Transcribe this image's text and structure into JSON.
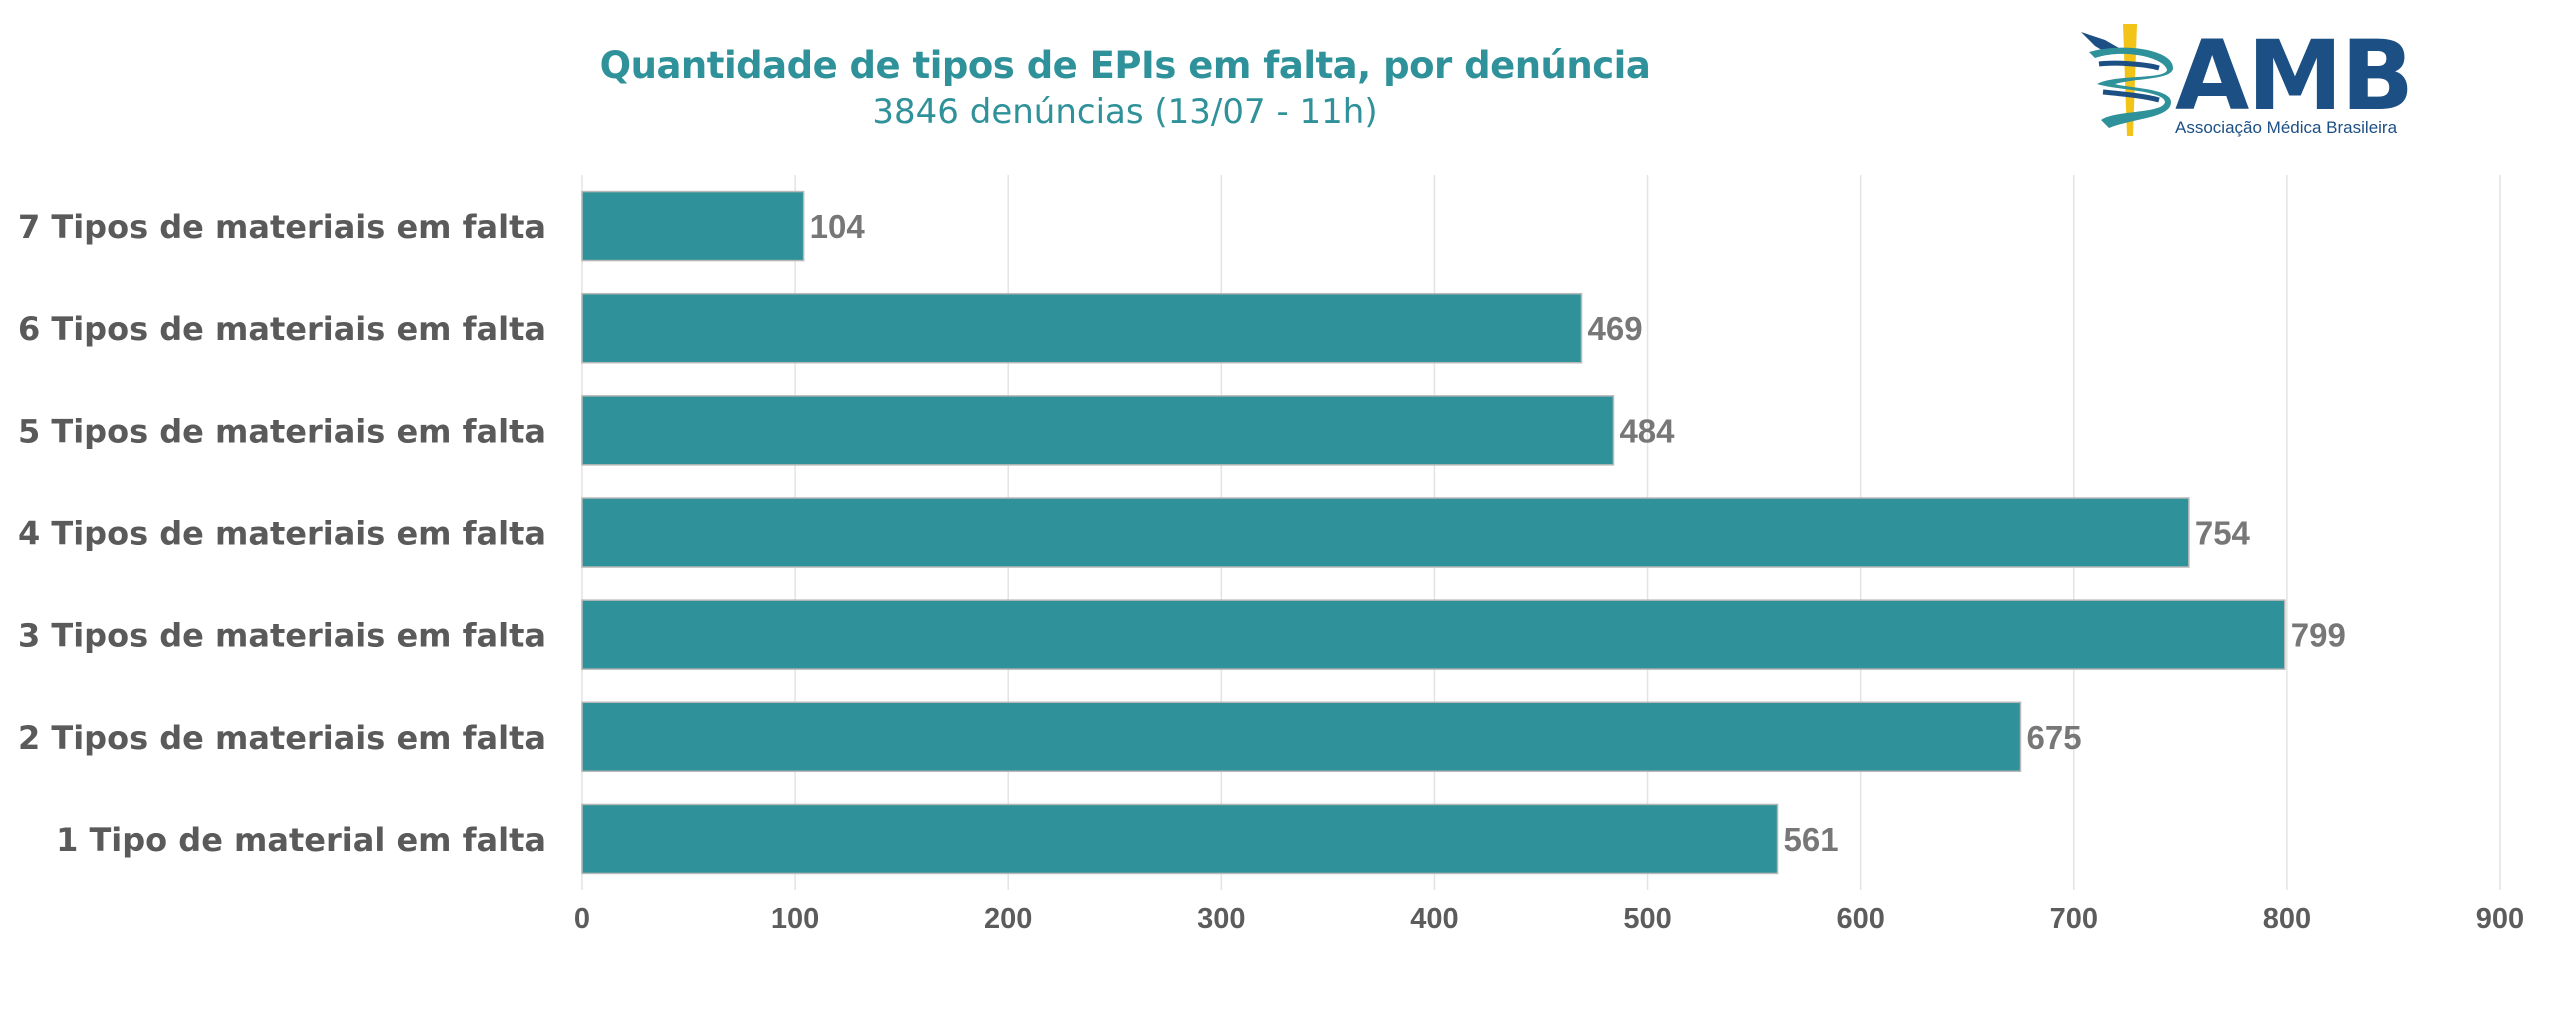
{
  "chart_data": {
    "type": "bar",
    "orientation": "horizontal",
    "title": "Quantidade de tipos de EPIs em falta, por denúncia",
    "subtitle": "3846 denúncias (13/07 - 11h)",
    "categories": [
      "7 Tipos de materiais em falta",
      "6 Tipos de materiais em falta",
      "5 Tipos de materiais em falta",
      "4 Tipos de materiais em falta",
      "3 Tipos de materiais em falta",
      "2 Tipos de materiais em falta",
      "1 Tipo de material em falta"
    ],
    "values": [
      104,
      469,
      484,
      754,
      799,
      675,
      561
    ],
    "data_labels": [
      "104",
      "469",
      "484",
      "754",
      "799",
      "675",
      "561"
    ],
    "xlim": [
      0,
      900
    ],
    "x_ticks": [
      0,
      100,
      200,
      300,
      400,
      500,
      600,
      700,
      800,
      900
    ],
    "x_tick_labels": [
      "0",
      "100",
      "200",
      "300",
      "400",
      "500",
      "600",
      "700",
      "800",
      "900"
    ],
    "xlabel": "",
    "ylabel": "",
    "grid": true,
    "legend": "none",
    "bar_color": "#2f9199"
  },
  "logo": {
    "name": "AMB",
    "subtitle": "Associação Médica Brasileira"
  }
}
